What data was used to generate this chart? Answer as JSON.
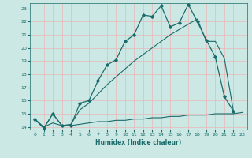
{
  "xlabel": "Humidex (Indice chaleur)",
  "xlim": [
    -0.5,
    23.5
  ],
  "ylim": [
    13.8,
    23.4
  ],
  "yticks": [
    14,
    15,
    16,
    17,
    18,
    19,
    20,
    21,
    22,
    23
  ],
  "xticks": [
    0,
    1,
    2,
    3,
    4,
    5,
    6,
    7,
    8,
    9,
    10,
    11,
    12,
    13,
    14,
    15,
    16,
    17,
    18,
    19,
    20,
    21,
    22,
    23
  ],
  "bg_color": "#cce8e4",
  "grid_color": "#e8b8b8",
  "line_color": "#1a6b6b",
  "line1_x": [
    0,
    1,
    2,
    3,
    4,
    5,
    6,
    7,
    8,
    9,
    10,
    11,
    12,
    13,
    14,
    15,
    16,
    17,
    18,
    19,
    20,
    21,
    22,
    23
  ],
  "line1_y": [
    14.6,
    13.9,
    15.0,
    14.1,
    14.1,
    15.8,
    16.0,
    17.5,
    18.7,
    19.1,
    20.5,
    21.0,
    22.5,
    22.4,
    23.2,
    21.6,
    21.9,
    23.3,
    22.0,
    20.6,
    19.3,
    16.3,
    15.2,
    null
  ],
  "line2_x": [
    0,
    1,
    2,
    3,
    4,
    5,
    6,
    7,
    8,
    9,
    10,
    11,
    12,
    13,
    14,
    15,
    16,
    17,
    18,
    19,
    20,
    21,
    22,
    23
  ],
  "line2_y": [
    14.6,
    13.9,
    15.0,
    14.1,
    14.2,
    15.3,
    15.8,
    16.5,
    17.2,
    17.8,
    18.4,
    19.0,
    19.5,
    20.0,
    20.5,
    21.0,
    21.4,
    21.8,
    22.2,
    20.5,
    20.5,
    19.2,
    15.2,
    null
  ],
  "line3_x": [
    0,
    1,
    2,
    3,
    4,
    5,
    6,
    7,
    8,
    9,
    10,
    11,
    12,
    13,
    14,
    15,
    16,
    17,
    18,
    19,
    20,
    21,
    22,
    23
  ],
  "line3_y": [
    14.6,
    14.0,
    14.3,
    14.1,
    14.1,
    14.2,
    14.3,
    14.4,
    14.4,
    14.5,
    14.5,
    14.6,
    14.6,
    14.7,
    14.7,
    14.8,
    14.8,
    14.9,
    14.9,
    14.9,
    15.0,
    15.0,
    15.0,
    15.1
  ]
}
